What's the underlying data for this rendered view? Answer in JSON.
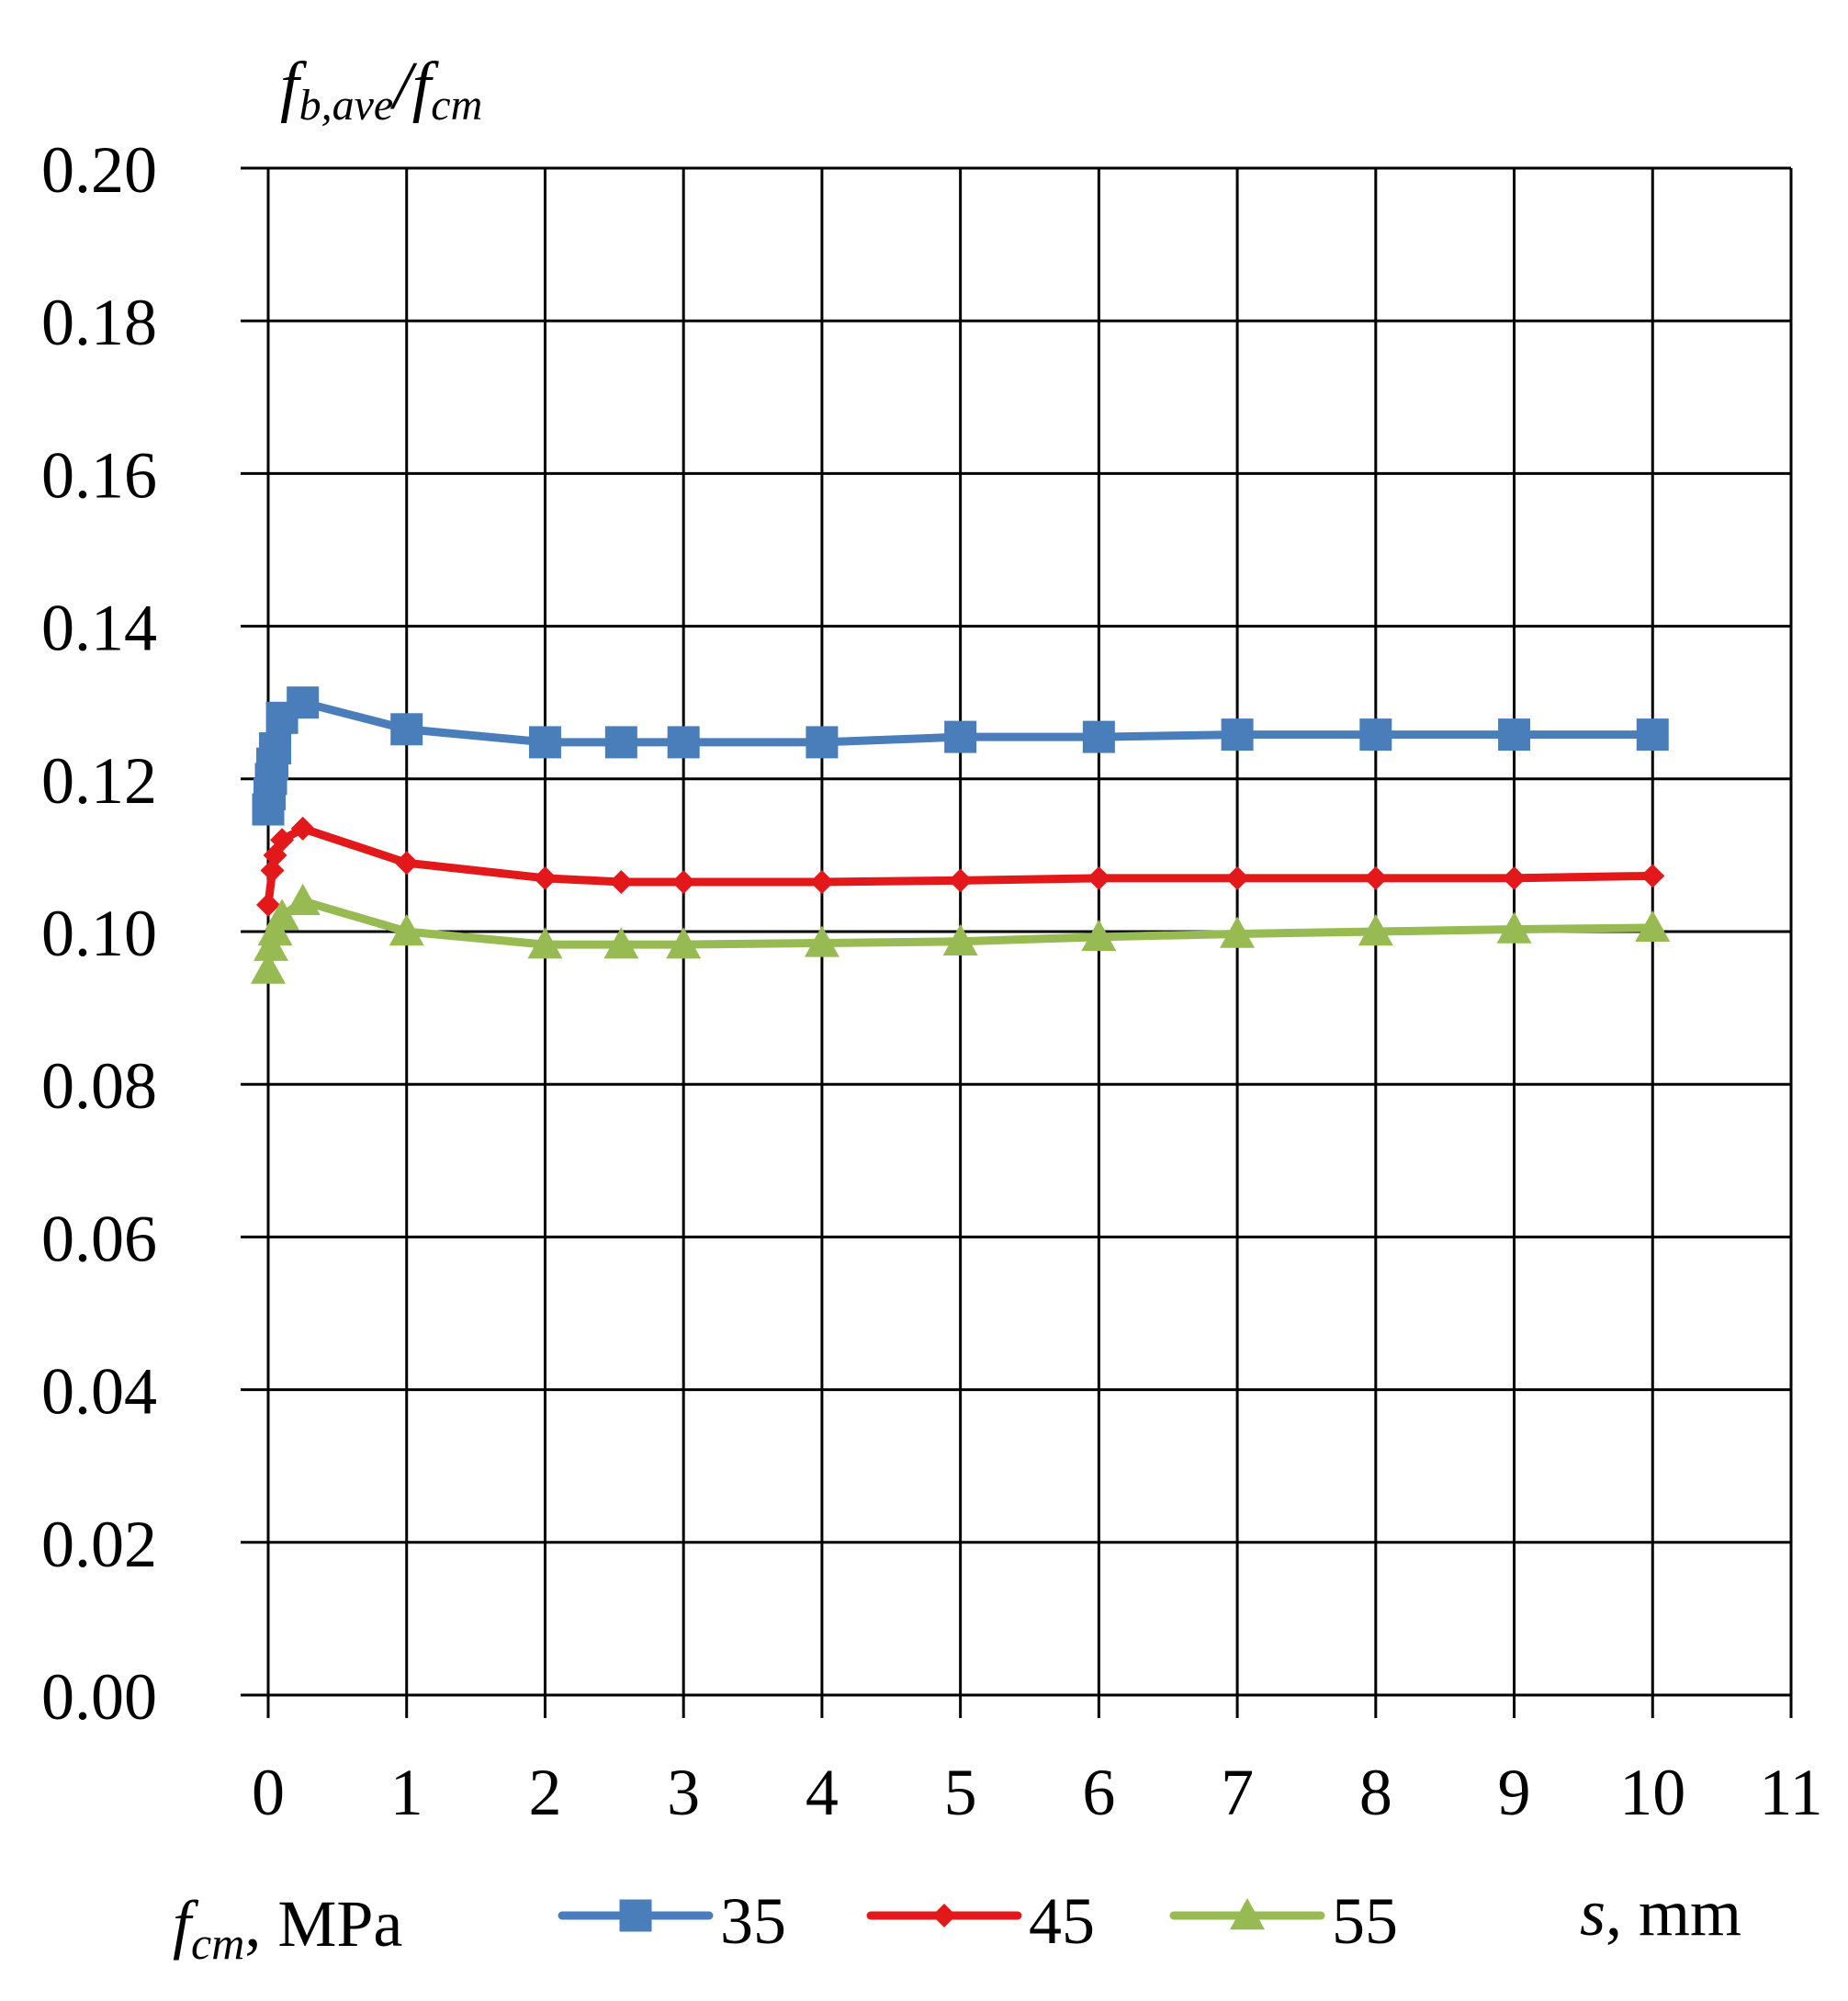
{
  "chart_data": {
    "type": "line",
    "title": "",
    "ylabel": {
      "f": "f",
      "sub1": "b,ave",
      "slash": "/",
      "f2": "f",
      "sub2": "cm"
    },
    "xlabel": {
      "s": "s",
      "rest": ", mm"
    },
    "legend_title": {
      "f": "f",
      "sub": "cm",
      "rest": ", MPa"
    },
    "legend_position": "bottom",
    "grid": true,
    "xlim": [
      0,
      11
    ],
    "ylim": [
      0,
      0.2
    ],
    "x_ticks": [
      "0",
      "1",
      "2",
      "3",
      "4",
      "5",
      "6",
      "7",
      "8",
      "9",
      "10",
      "11"
    ],
    "y_ticks": [
      "0.00",
      "0.02",
      "0.04",
      "0.06",
      "0.08",
      "0.10",
      "0.12",
      "0.14",
      "0.16",
      "0.18",
      "0.20"
    ],
    "series": [
      {
        "name": "35",
        "color": "#4a7ebb",
        "marker": "square",
        "points": [
          [
            0,
            0.116
          ],
          [
            0.01,
            0.118
          ],
          [
            0.02,
            0.12
          ],
          [
            0.03,
            0.122
          ],
          [
            0.05,
            0.124
          ],
          [
            0.1,
            0.128
          ],
          [
            0.25,
            0.13
          ],
          [
            1,
            0.1265
          ],
          [
            2,
            0.1248
          ],
          [
            2.55,
            0.1248
          ],
          [
            3,
            0.1248
          ],
          [
            4,
            0.1248
          ],
          [
            5,
            0.1255
          ],
          [
            6,
            0.1255
          ],
          [
            7,
            0.1258
          ],
          [
            8,
            0.1258
          ],
          [
            9,
            0.1258
          ],
          [
            10,
            0.1258
          ]
        ]
      },
      {
        "name": "45",
        "color": "#e2181b",
        "marker": "diamond",
        "points": [
          [
            0,
            0.1035
          ],
          [
            0.03,
            0.108
          ],
          [
            0.05,
            0.11
          ],
          [
            0.1,
            0.112
          ],
          [
            0.25,
            0.1135
          ],
          [
            1,
            0.109
          ],
          [
            2,
            0.107
          ],
          [
            2.55,
            0.1065
          ],
          [
            3,
            0.1065
          ],
          [
            4,
            0.1065
          ],
          [
            5,
            0.1067
          ],
          [
            6,
            0.107
          ],
          [
            7,
            0.107
          ],
          [
            8,
            0.107
          ],
          [
            9,
            0.107
          ],
          [
            10,
            0.1073
          ]
        ]
      },
      {
        "name": "55",
        "color": "#97bb52",
        "marker": "triangle",
        "points": [
          [
            0,
            0.095
          ],
          [
            0.02,
            0.098
          ],
          [
            0.05,
            0.1
          ],
          [
            0.1,
            0.102
          ],
          [
            0.25,
            0.104
          ],
          [
            1,
            0.1
          ],
          [
            2,
            0.0983
          ],
          [
            2.55,
            0.0983
          ],
          [
            3,
            0.0983
          ],
          [
            4,
            0.0985
          ],
          [
            5,
            0.0987
          ],
          [
            6,
            0.0993
          ],
          [
            7,
            0.0997
          ],
          [
            8,
            0.1
          ],
          [
            9,
            0.1003
          ],
          [
            10,
            0.1005
          ]
        ]
      }
    ]
  }
}
